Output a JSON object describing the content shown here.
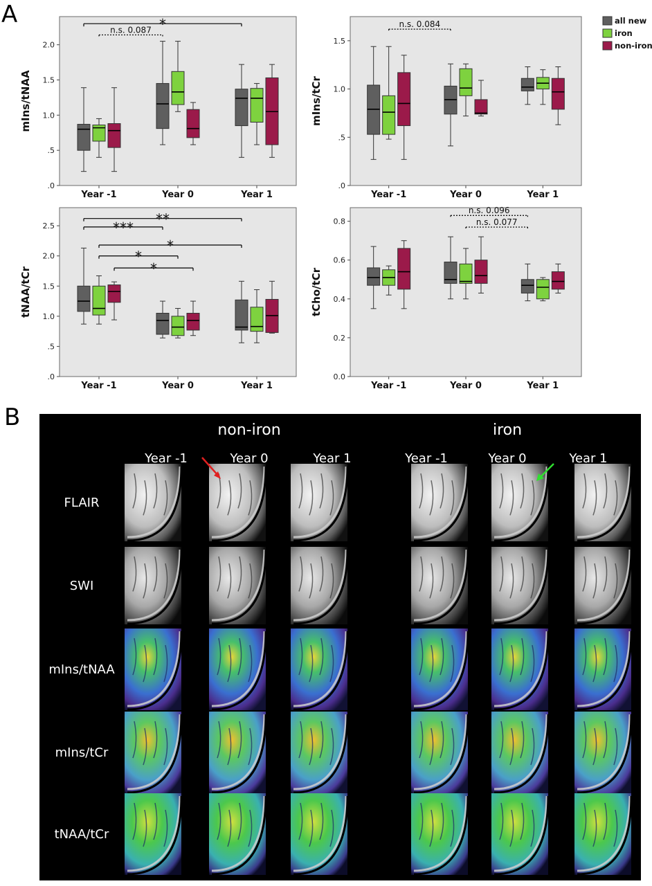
{
  "panel_a_label": "A",
  "panel_b_label": "B",
  "legend": {
    "items": [
      {
        "label": "all new",
        "color": "#5f5f5f"
      },
      {
        "label": "iron",
        "color": "#7ed23f"
      },
      {
        "label": "non-iron",
        "color": "#9b1a4a"
      }
    ]
  },
  "chart_data": [
    {
      "type": "box",
      "ylabel": "mIns/tNAA",
      "categories": [
        "Year -1",
        "Year 0",
        "Year 1"
      ],
      "ylim": [
        0,
        2.4
      ],
      "yticks": [
        0,
        0.5,
        1.0,
        1.5,
        2.0
      ],
      "ytick_labels": [
        ".0",
        ".5",
        "1.0",
        "1.5",
        "2.0"
      ],
      "series": [
        {
          "name": "all new",
          "boxes": [
            {
              "min": 0.2,
              "q1": 0.5,
              "median": 0.8,
              "q3": 0.87,
              "max": 1.39
            },
            {
              "min": 0.58,
              "q1": 0.81,
              "median": 1.16,
              "q3": 1.45,
              "max": 2.05
            },
            {
              "min": 0.4,
              "q1": 0.85,
              "median": 1.24,
              "q3": 1.37,
              "max": 1.72
            }
          ]
        },
        {
          "name": "iron",
          "boxes": [
            {
              "min": 0.4,
              "q1": 0.63,
              "median": 0.82,
              "q3": 0.86,
              "max": 0.95
            },
            {
              "min": 1.05,
              "q1": 1.15,
              "median": 1.33,
              "q3": 1.62,
              "max": 2.05
            },
            {
              "min": 0.58,
              "q1": 0.9,
              "median": 1.24,
              "q3": 1.38,
              "max": 1.45
            }
          ]
        },
        {
          "name": "non-iron",
          "boxes": [
            {
              "min": 0.2,
              "q1": 0.54,
              "median": 0.78,
              "q3": 0.88,
              "max": 1.39
            },
            {
              "min": 0.58,
              "q1": 0.68,
              "median": 0.81,
              "q3": 1.08,
              "max": 1.18
            },
            {
              "min": 0.4,
              "q1": 0.58,
              "median": 1.05,
              "q3": 1.53,
              "max": 1.72
            }
          ]
        }
      ],
      "annotations": [
        {
          "text": "*",
          "from": [
            0,
            0
          ],
          "to": [
            2,
            0
          ],
          "y": 2.3,
          "dashed": false
        },
        {
          "text": "n.s. 0.087",
          "from": [
            0,
            1
          ],
          "to": [
            1,
            0
          ],
          "y": 2.14,
          "dashed": true
        }
      ]
    },
    {
      "type": "box",
      "ylabel": "mIns/tCr",
      "categories": [
        "Year -1",
        "Year 0",
        "Year 1"
      ],
      "ylim": [
        0,
        1.75
      ],
      "yticks": [
        0,
        0.5,
        1.0,
        1.5
      ],
      "ytick_labels": [
        ".0",
        ".5",
        "1.0",
        "1.5"
      ],
      "series": [
        {
          "name": "all new",
          "boxes": [
            {
              "min": 0.27,
              "q1": 0.53,
              "median": 0.79,
              "q3": 1.04,
              "max": 1.44
            },
            {
              "min": 0.41,
              "q1": 0.74,
              "median": 0.89,
              "q3": 1.03,
              "max": 1.26
            },
            {
              "min": 0.84,
              "q1": 0.98,
              "median": 1.02,
              "q3": 1.11,
              "max": 1.23
            }
          ]
        },
        {
          "name": "iron",
          "boxes": [
            {
              "min": 0.48,
              "q1": 0.53,
              "median": 0.76,
              "q3": 0.93,
              "max": 1.44
            },
            {
              "min": 0.72,
              "q1": 0.93,
              "median": 1.01,
              "q3": 1.21,
              "max": 1.26
            },
            {
              "min": 0.84,
              "q1": 1.0,
              "median": 1.06,
              "q3": 1.12,
              "max": 1.2
            }
          ]
        },
        {
          "name": "non-iron",
          "boxes": [
            {
              "min": 0.27,
              "q1": 0.62,
              "median": 0.85,
              "q3": 1.17,
              "max": 1.35
            },
            {
              "min": 0.72,
              "q1": 0.74,
              "median": 0.75,
              "q3": 0.89,
              "max": 1.09
            },
            {
              "min": 0.63,
              "q1": 0.79,
              "median": 0.97,
              "q3": 1.11,
              "max": 1.23
            }
          ]
        }
      ],
      "annotations": [
        {
          "text": "n.s. 0.084",
          "from": [
            0,
            1
          ],
          "to": [
            1,
            0
          ],
          "y": 1.62,
          "dashed": true
        }
      ]
    },
    {
      "type": "box",
      "ylabel": "tNAA/tCr",
      "categories": [
        "Year -1",
        "Year 0",
        "Year 1"
      ],
      "ylim": [
        0,
        2.8
      ],
      "yticks": [
        0,
        0.5,
        1.0,
        1.5,
        2.0,
        2.5
      ],
      "ytick_labels": [
        ".0",
        ".5",
        "1.0",
        "1.5",
        "2.0",
        "2.5"
      ],
      "series": [
        {
          "name": "all new",
          "boxes": [
            {
              "min": 0.87,
              "q1": 1.08,
              "median": 1.25,
              "q3": 1.5,
              "max": 2.13
            },
            {
              "min": 0.64,
              "q1": 0.7,
              "median": 0.93,
              "q3": 1.05,
              "max": 1.25
            },
            {
              "min": 0.56,
              "q1": 0.77,
              "median": 0.82,
              "q3": 1.27,
              "max": 1.58
            }
          ]
        },
        {
          "name": "iron",
          "boxes": [
            {
              "min": 0.87,
              "q1": 1.02,
              "median": 1.13,
              "q3": 1.5,
              "max": 1.67
            },
            {
              "min": 0.64,
              "q1": 0.68,
              "median": 0.82,
              "q3": 1.0,
              "max": 1.13
            },
            {
              "min": 0.56,
              "q1": 0.75,
              "median": 0.83,
              "q3": 1.15,
              "max": 1.44
            }
          ]
        },
        {
          "name": "non-iron",
          "boxes": [
            {
              "min": 0.94,
              "q1": 1.23,
              "median": 1.41,
              "q3": 1.52,
              "max": 1.57
            },
            {
              "min": 0.68,
              "q1": 0.77,
              "median": 0.93,
              "q3": 1.05,
              "max": 1.25
            },
            {
              "min": 0.72,
              "q1": 0.73,
              "median": 1.01,
              "q3": 1.28,
              "max": 1.58
            }
          ]
        }
      ],
      "annotations": [
        {
          "text": "**",
          "from": [
            0,
            0
          ],
          "to": [
            2,
            0
          ],
          "y": 2.62,
          "dashed": false
        },
        {
          "text": "***",
          "from": [
            0,
            0
          ],
          "to": [
            1,
            0
          ],
          "y": 2.48,
          "dashed": false
        },
        {
          "text": "*",
          "from": [
            0,
            1
          ],
          "to": [
            2,
            0
          ],
          "y": 2.18,
          "dashed": false
        },
        {
          "text": "*",
          "from": [
            0,
            1
          ],
          "to": [
            1,
            1
          ],
          "y": 2.0,
          "dashed": false
        },
        {
          "text": "*",
          "from": [
            0,
            2
          ],
          "to": [
            1,
            2
          ],
          "y": 1.8,
          "dashed": false
        }
      ]
    },
    {
      "type": "box",
      "ylabel": "tCho/tCr",
      "categories": [
        "Year -1",
        "Year 0",
        "Year 1"
      ],
      "ylim": [
        0,
        0.87
      ],
      "yticks": [
        0,
        0.2,
        0.4,
        0.6,
        0.8
      ],
      "ytick_labels": [
        "0.0",
        "0.2",
        "0.4",
        "0.6",
        "0.8"
      ],
      "series": [
        {
          "name": "all new",
          "boxes": [
            {
              "min": 0.35,
              "q1": 0.47,
              "median": 0.51,
              "q3": 0.56,
              "max": 0.67
            },
            {
              "min": 0.4,
              "q1": 0.48,
              "median": 0.5,
              "q3": 0.59,
              "max": 0.72
            },
            {
              "min": 0.39,
              "q1": 0.43,
              "median": 0.47,
              "q3": 0.5,
              "max": 0.58
            }
          ]
        },
        {
          "name": "iron",
          "boxes": [
            {
              "min": 0.42,
              "q1": 0.47,
              "median": 0.51,
              "q3": 0.55,
              "max": 0.57
            },
            {
              "min": 0.4,
              "q1": 0.48,
              "median": 0.49,
              "q3": 0.58,
              "max": 0.66
            },
            {
              "min": 0.39,
              "q1": 0.4,
              "median": 0.46,
              "q3": 0.5,
              "max": 0.51
            }
          ]
        },
        {
          "name": "non-iron",
          "boxes": [
            {
              "min": 0.35,
              "q1": 0.45,
              "median": 0.54,
              "q3": 0.66,
              "max": 0.7
            },
            {
              "min": 0.43,
              "q1": 0.48,
              "median": 0.52,
              "q3": 0.6,
              "max": 0.72
            },
            {
              "min": 0.43,
              "q1": 0.45,
              "median": 0.49,
              "q3": 0.54,
              "max": 0.58
            }
          ]
        }
      ],
      "annotations": [
        {
          "text": "n.s. 0.096",
          "from": [
            1,
            0
          ],
          "to": [
            2,
            0
          ],
          "y": 0.83,
          "dashed": true
        },
        {
          "text": "n.s. 0.077",
          "from": [
            1,
            1
          ],
          "to": [
            2,
            0
          ],
          "y": 0.77,
          "dashed": true
        }
      ]
    }
  ],
  "panel_b": {
    "group_titles": [
      "non-iron",
      "iron"
    ],
    "year_labels": [
      "Year -1",
      "Year 0",
      "Year 1"
    ],
    "row_labels": [
      "FLAIR",
      "SWI",
      "mIns/tNAA",
      "mIns/tCr",
      "tNAA/tCr"
    ]
  }
}
